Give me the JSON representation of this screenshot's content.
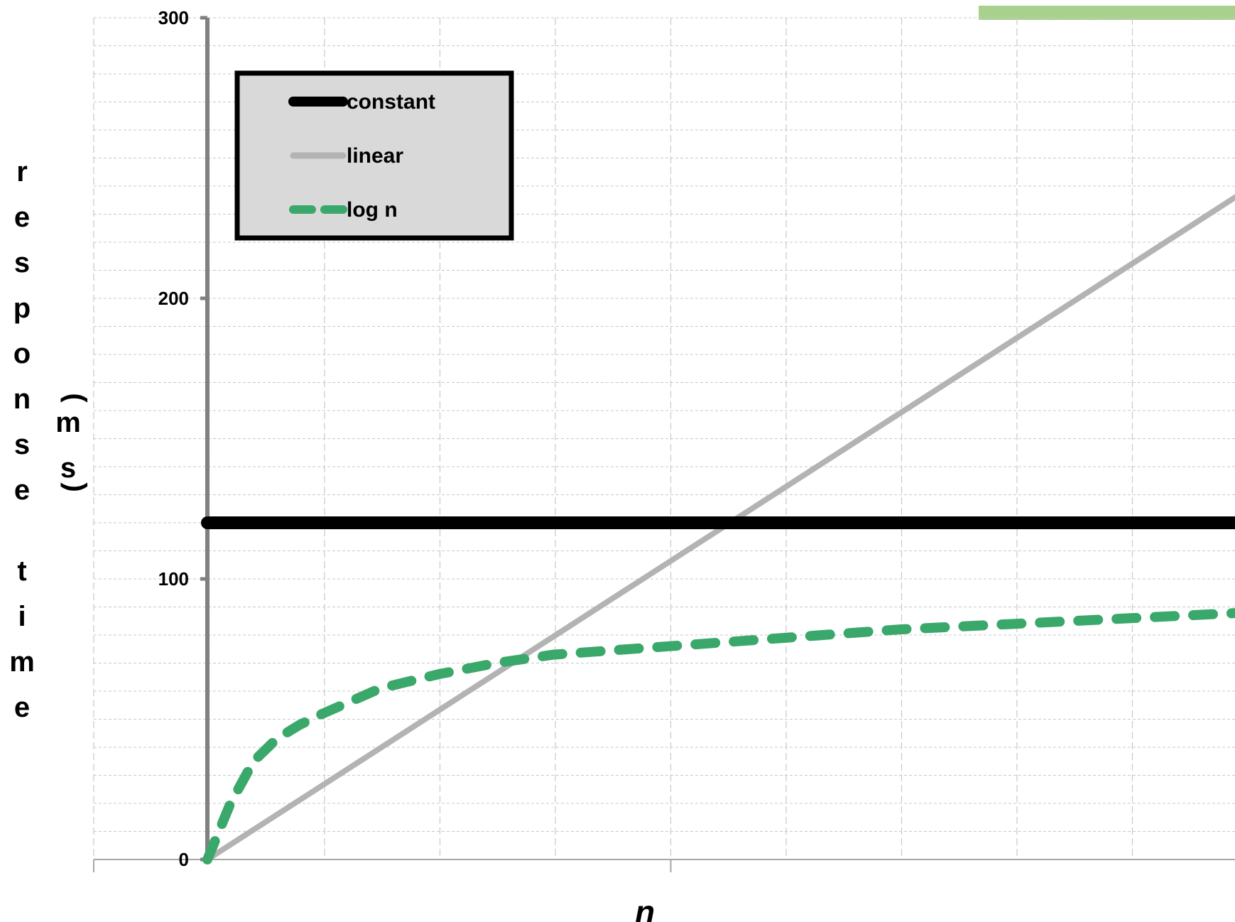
{
  "chart_data": {
    "type": "line",
    "title": "",
    "xlabel": "n",
    "ylabel_main": "response time",
    "ylabel_unit": "(ms)",
    "ylim": [
      0,
      300
    ],
    "yticks": [
      "0",
      "100",
      "200",
      "300"
    ],
    "xlim": [
      0,
      100
    ],
    "grid": true,
    "legend_position": "top-left",
    "series": [
      {
        "name": "constant",
        "color": "#000000",
        "style": "solid",
        "x": [
          0,
          100
        ],
        "y": [
          120,
          120
        ]
      },
      {
        "name": "linear",
        "color": "#b3b3b3",
        "style": "solid",
        "x": [
          0,
          10,
          20,
          30,
          40,
          50,
          60,
          70,
          80,
          90,
          100
        ],
        "y": [
          0,
          26.5,
          53,
          79.5,
          106,
          132.5,
          159,
          185.5,
          212,
          238.5,
          265
        ]
      },
      {
        "name": "log n",
        "color": "#3aa86b",
        "style": "dashed",
        "x": [
          0,
          2,
          4,
          6,
          8,
          10,
          15,
          20,
          25,
          30,
          40,
          50,
          60,
          70,
          80,
          90,
          100
        ],
        "y": [
          0,
          20,
          35,
          43,
          48,
          52,
          61,
          66,
          70,
          73,
          76,
          79,
          82,
          84,
          86,
          88,
          90
        ]
      }
    ]
  }
}
